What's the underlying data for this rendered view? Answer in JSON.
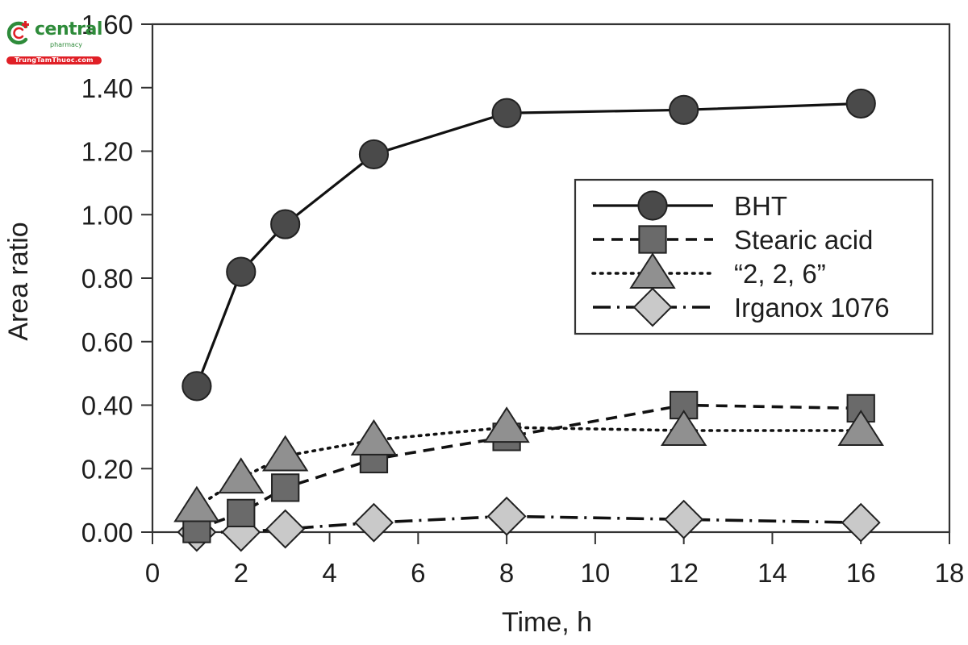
{
  "watermark": {
    "brand": "central",
    "sub": "pharmacy",
    "banner": "TrungTamThuoc.com",
    "green": "#2e8b3a",
    "red": "#e01f26"
  },
  "chart_data": {
    "type": "line",
    "title": "",
    "xlabel": "Time, h",
    "ylabel": "Area ratio",
    "xlim": [
      0,
      18
    ],
    "ylim": [
      0,
      1.6
    ],
    "xticks": [
      0,
      2,
      4,
      6,
      8,
      10,
      12,
      14,
      16,
      18
    ],
    "xtick_labels": [
      "0",
      "2",
      "4",
      "6",
      "8",
      "10",
      "12",
      "14",
      "16",
      "18"
    ],
    "yticks": [
      0,
      0.2,
      0.4,
      0.6,
      0.8,
      1.0,
      1.2,
      1.4,
      1.6
    ],
    "ytick_labels": [
      "0.00",
      "0.20",
      "0.40",
      "0.60",
      "0.80",
      "1.00",
      "1.20",
      "1.40",
      "1.60"
    ],
    "grid": false,
    "legend_position": "upper right (inside plot, mid-height)",
    "x": [
      1,
      2,
      3,
      5,
      8,
      12,
      16
    ],
    "series": [
      {
        "name": "BHT",
        "marker": "circle",
        "line": "solid",
        "fill": "#4a4a4a",
        "values": [
          0.46,
          0.82,
          0.97,
          1.19,
          1.32,
          1.33,
          1.35
        ]
      },
      {
        "name": "Stearic acid",
        "marker": "square",
        "line": "dashed",
        "fill": "#6a6a6a",
        "values": [
          0.01,
          0.06,
          0.14,
          0.23,
          0.3,
          0.4,
          0.39
        ]
      },
      {
        "name": "“2, 2, 6”",
        "marker": "triangle",
        "line": "dotted",
        "fill": "#909090",
        "values": [
          0.08,
          0.17,
          0.24,
          0.29,
          0.33,
          0.32,
          0.32
        ]
      },
      {
        "name": "Irganox 1076",
        "marker": "diamond",
        "line": "dash-dot",
        "fill": "#c9c9c9",
        "values": [
          0.0,
          0.0,
          0.01,
          0.03,
          0.05,
          0.04,
          0.03
        ]
      }
    ]
  }
}
